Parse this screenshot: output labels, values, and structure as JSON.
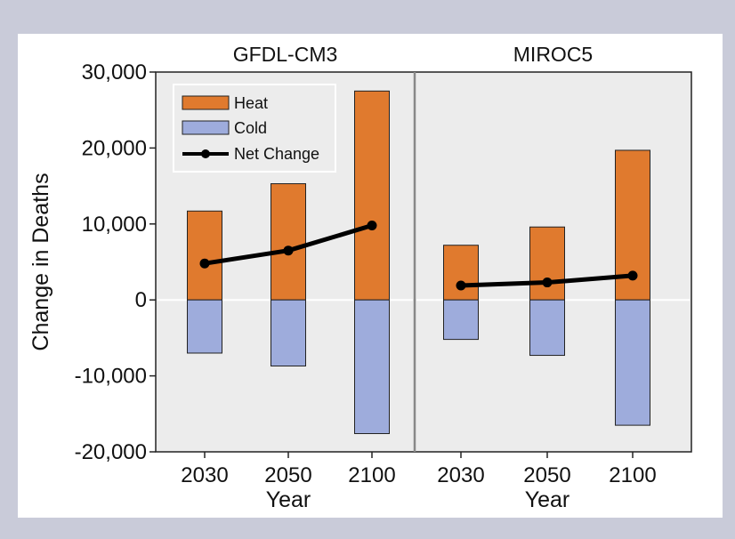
{
  "chart_data": {
    "type": "bar",
    "ylabel": "Change in Deaths",
    "xlabel": "Year",
    "ylim": [
      -20000,
      30000
    ],
    "yticks": [
      30000,
      20000,
      10000,
      0,
      -10000,
      -20000
    ],
    "ytick_labels": [
      "30,000",
      "20,000",
      "10,000",
      "0",
      "-10,000",
      "-20,000"
    ],
    "categories": [
      "2030",
      "2050",
      "2100"
    ],
    "colors": {
      "heat": "#e07a2e",
      "cold": "#9eacdc",
      "net": "#000000",
      "plot_bg": "#ececec"
    },
    "legend": {
      "placement": "top-left",
      "items": [
        "Heat",
        "Cold",
        "Net Change"
      ]
    },
    "panels": [
      {
        "title": "GFDL-CM3",
        "series": [
          {
            "name": "Heat",
            "values": [
              11700,
              15300,
              27500
            ]
          },
          {
            "name": "Cold",
            "values": [
              -7000,
              -8700,
              -17600
            ]
          },
          {
            "name": "Net Change",
            "values": [
              4800,
              6500,
              9800
            ]
          }
        ]
      },
      {
        "title": "MIROC5",
        "series": [
          {
            "name": "Heat",
            "values": [
              7200,
              9600,
              19700
            ]
          },
          {
            "name": "Cold",
            "values": [
              -5200,
              -7300,
              -16500
            ]
          },
          {
            "name": "Net Change",
            "values": [
              1900,
              2300,
              3200
            ]
          }
        ]
      }
    ]
  }
}
